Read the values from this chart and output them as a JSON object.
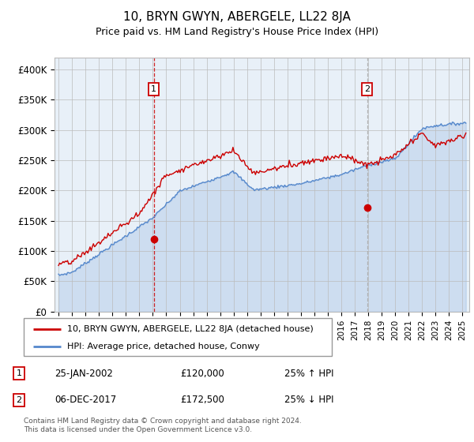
{
  "title": "10, BRYN GWYN, ABERGELE, LL22 8JA",
  "subtitle": "Price paid vs. HM Land Registry's House Price Index (HPI)",
  "ylabel_ticks": [
    "£0",
    "£50K",
    "£100K",
    "£150K",
    "£200K",
    "£250K",
    "£300K",
    "£350K",
    "£400K"
  ],
  "ytick_vals": [
    0,
    50000,
    100000,
    150000,
    200000,
    250000,
    300000,
    350000,
    400000
  ],
  "ylim": [
    0,
    420000
  ],
  "xlim_start": 1994.7,
  "xlim_end": 2025.5,
  "sale1_x": 2002.07,
  "sale1_y": 120000,
  "sale2_x": 2017.92,
  "sale2_y": 172500,
  "hpi_color": "#5588cc",
  "price_color": "#cc0000",
  "vline1_color": "#cc0000",
  "vline2_color": "#aaaaaa",
  "legend_label1": "10, BRYN GWYN, ABERGELE, LL22 8JA (detached house)",
  "legend_label2": "HPI: Average price, detached house, Conwy",
  "table_row1": [
    "1",
    "25-JAN-2002",
    "£120,000",
    "25% ↑ HPI"
  ],
  "table_row2": [
    "2",
    "06-DEC-2017",
    "£172,500",
    "25% ↓ HPI"
  ],
  "footnote": "Contains HM Land Registry data © Crown copyright and database right 2024.\nThis data is licensed under the Open Government Licence v3.0.",
  "background_color": "#ffffff",
  "plot_bg_color": "#e8f0f8"
}
